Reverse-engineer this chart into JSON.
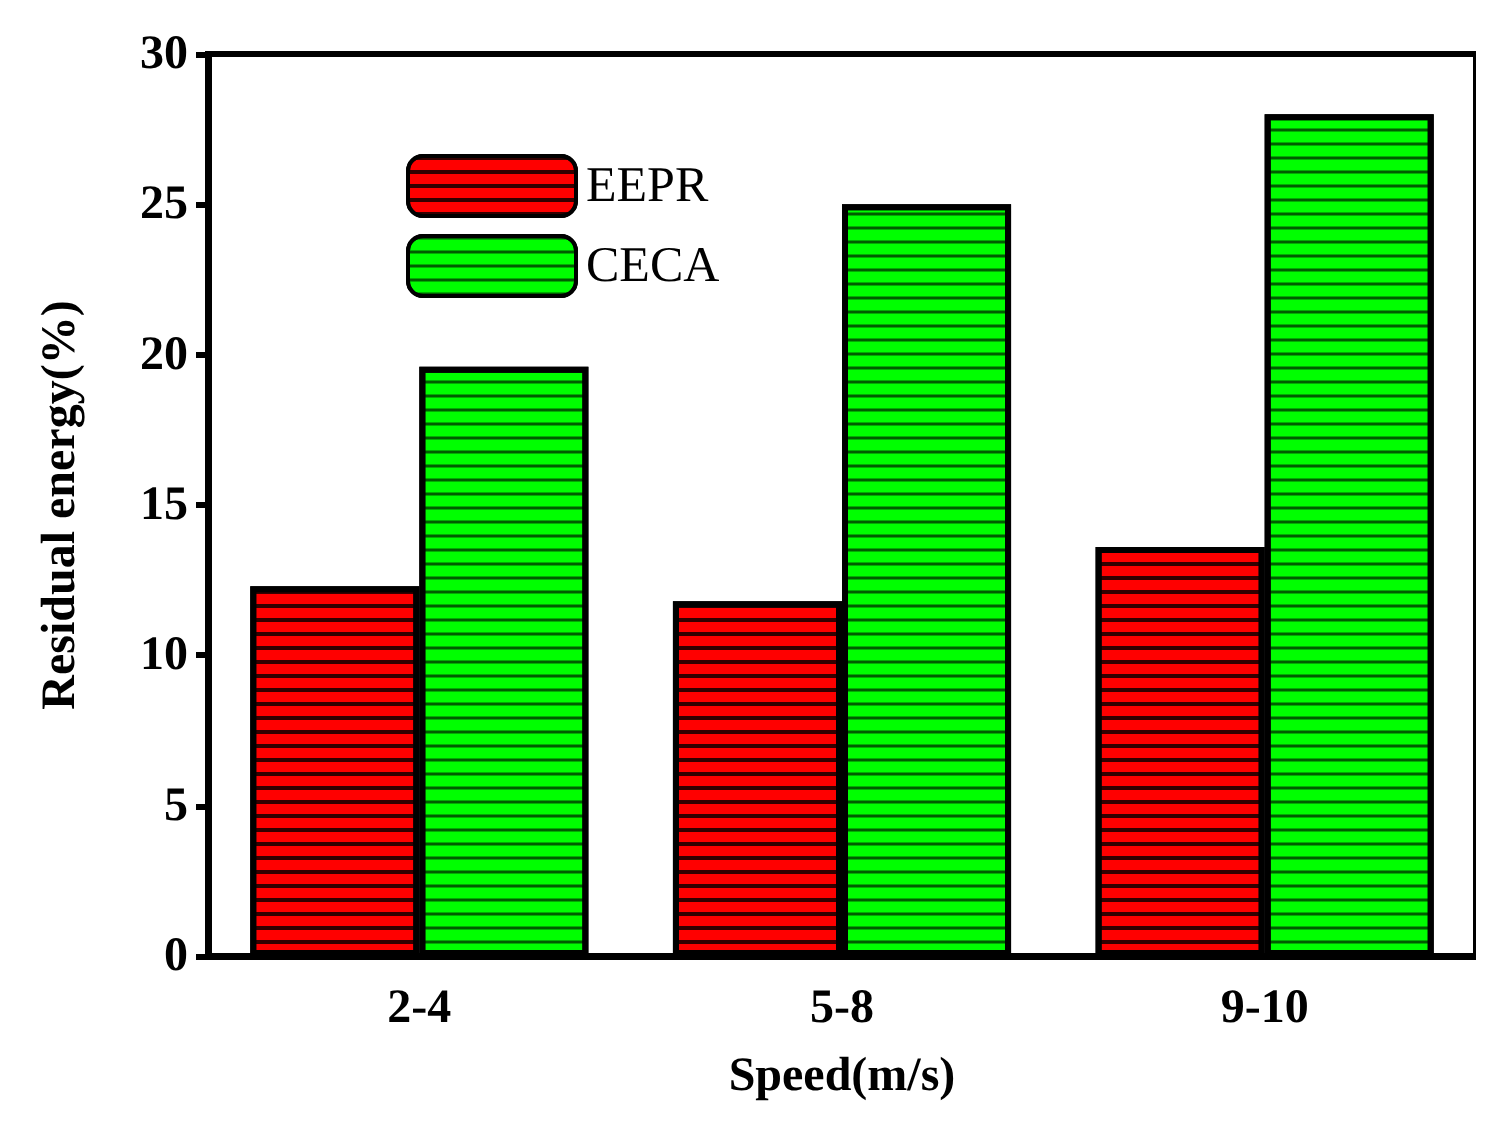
{
  "chart_data": {
    "type": "bar",
    "xlabel": "Speed(m/s)",
    "ylabel": "Residual energy(%)",
    "categories": [
      "2-4",
      "5-8",
      "9-10"
    ],
    "series": [
      {
        "name": "EEPR",
        "color": "#ff0000",
        "values": [
          12.3,
          11.8,
          13.6
        ]
      },
      {
        "name": "CECA",
        "color": "#00ff00",
        "values": [
          19.6,
          25,
          28
        ]
      }
    ],
    "ylim": [
      0,
      30
    ],
    "yticks": [
      0,
      5,
      10,
      15,
      20,
      25,
      30
    ],
    "grid": false,
    "legend": "top left"
  }
}
